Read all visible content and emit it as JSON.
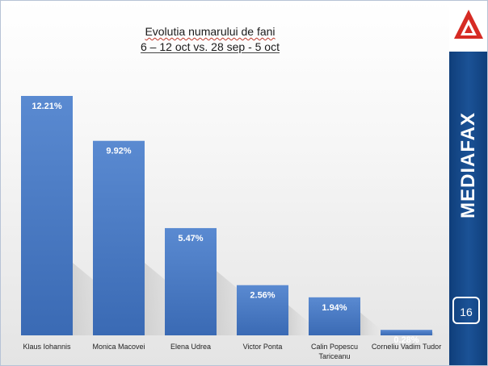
{
  "title": {
    "line1": "Evolutia numarului de fani",
    "line2": "6 – 12 oct vs. 28 sep - 5 oct"
  },
  "sidebar": {
    "brand": "MEDIAFAX",
    "page_number": "16"
  },
  "colors": {
    "bar_top": "#5a8ad1",
    "bar_bottom": "#3a6ab4",
    "sidebar": "#1b4f8f",
    "logo_red": "#d62b24"
  },
  "chart_data": {
    "type": "bar",
    "categories": [
      "Klaus Iohannis",
      "Monica Macovei",
      "Elena Udrea",
      "Victor Ponta",
      "Calin Popescu Tariceanu",
      "Corneliu Vadim Tudor"
    ],
    "category_lines": [
      [
        "Klaus Iohannis"
      ],
      [
        "Monica Macovei"
      ],
      [
        "Elena Udrea"
      ],
      [
        "Victor Ponta"
      ],
      [
        "Calin Popescu",
        "Tariceanu"
      ],
      [
        "Corneliu Vadim Tudor"
      ]
    ],
    "values": [
      12.21,
      9.92,
      5.47,
      2.56,
      1.94,
      0.28
    ],
    "value_labels": [
      "12.21%",
      "9.92%",
      "5.47%",
      "2.56%",
      "1.94%",
      "0.28%"
    ],
    "title": "Evolutia numarului de fani",
    "subtitle": "6 – 12 oct vs. 28 sep - 5 oct",
    "unit": "%",
    "ylim": [
      0,
      12.21
    ],
    "grid": false,
    "legend": "none"
  }
}
